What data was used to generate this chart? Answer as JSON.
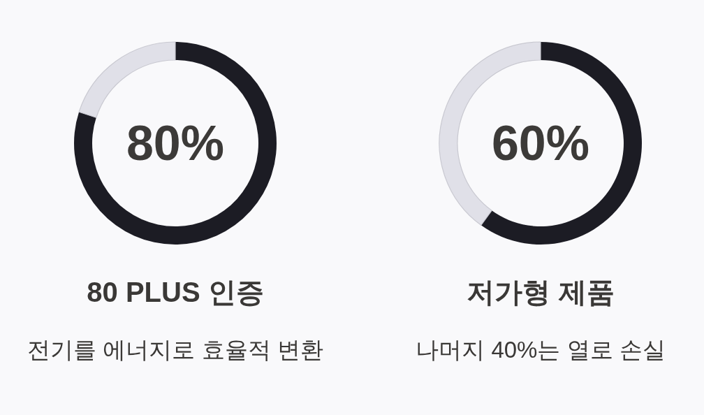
{
  "chart_data": [
    {
      "type": "donut",
      "title": "80 PLUS 인증",
      "subtitle": "전기를 에너지로 효율적 변환",
      "annotations": [
        "80%"
      ],
      "categories": [
        null,
        null
      ],
      "values": [
        80,
        20
      ],
      "colors": [
        "#1c1c24",
        "#e0e0e8"
      ]
    },
    {
      "type": "donut",
      "title": "저가형 제품",
      "subtitle": "나머지 40%는 열로 손실",
      "annotations": [
        "60%"
      ],
      "categories": [
        null,
        null
      ],
      "values": [
        60,
        40
      ],
      "colors": [
        "#1c1c24",
        "#e0e0e8"
      ]
    }
  ]
}
